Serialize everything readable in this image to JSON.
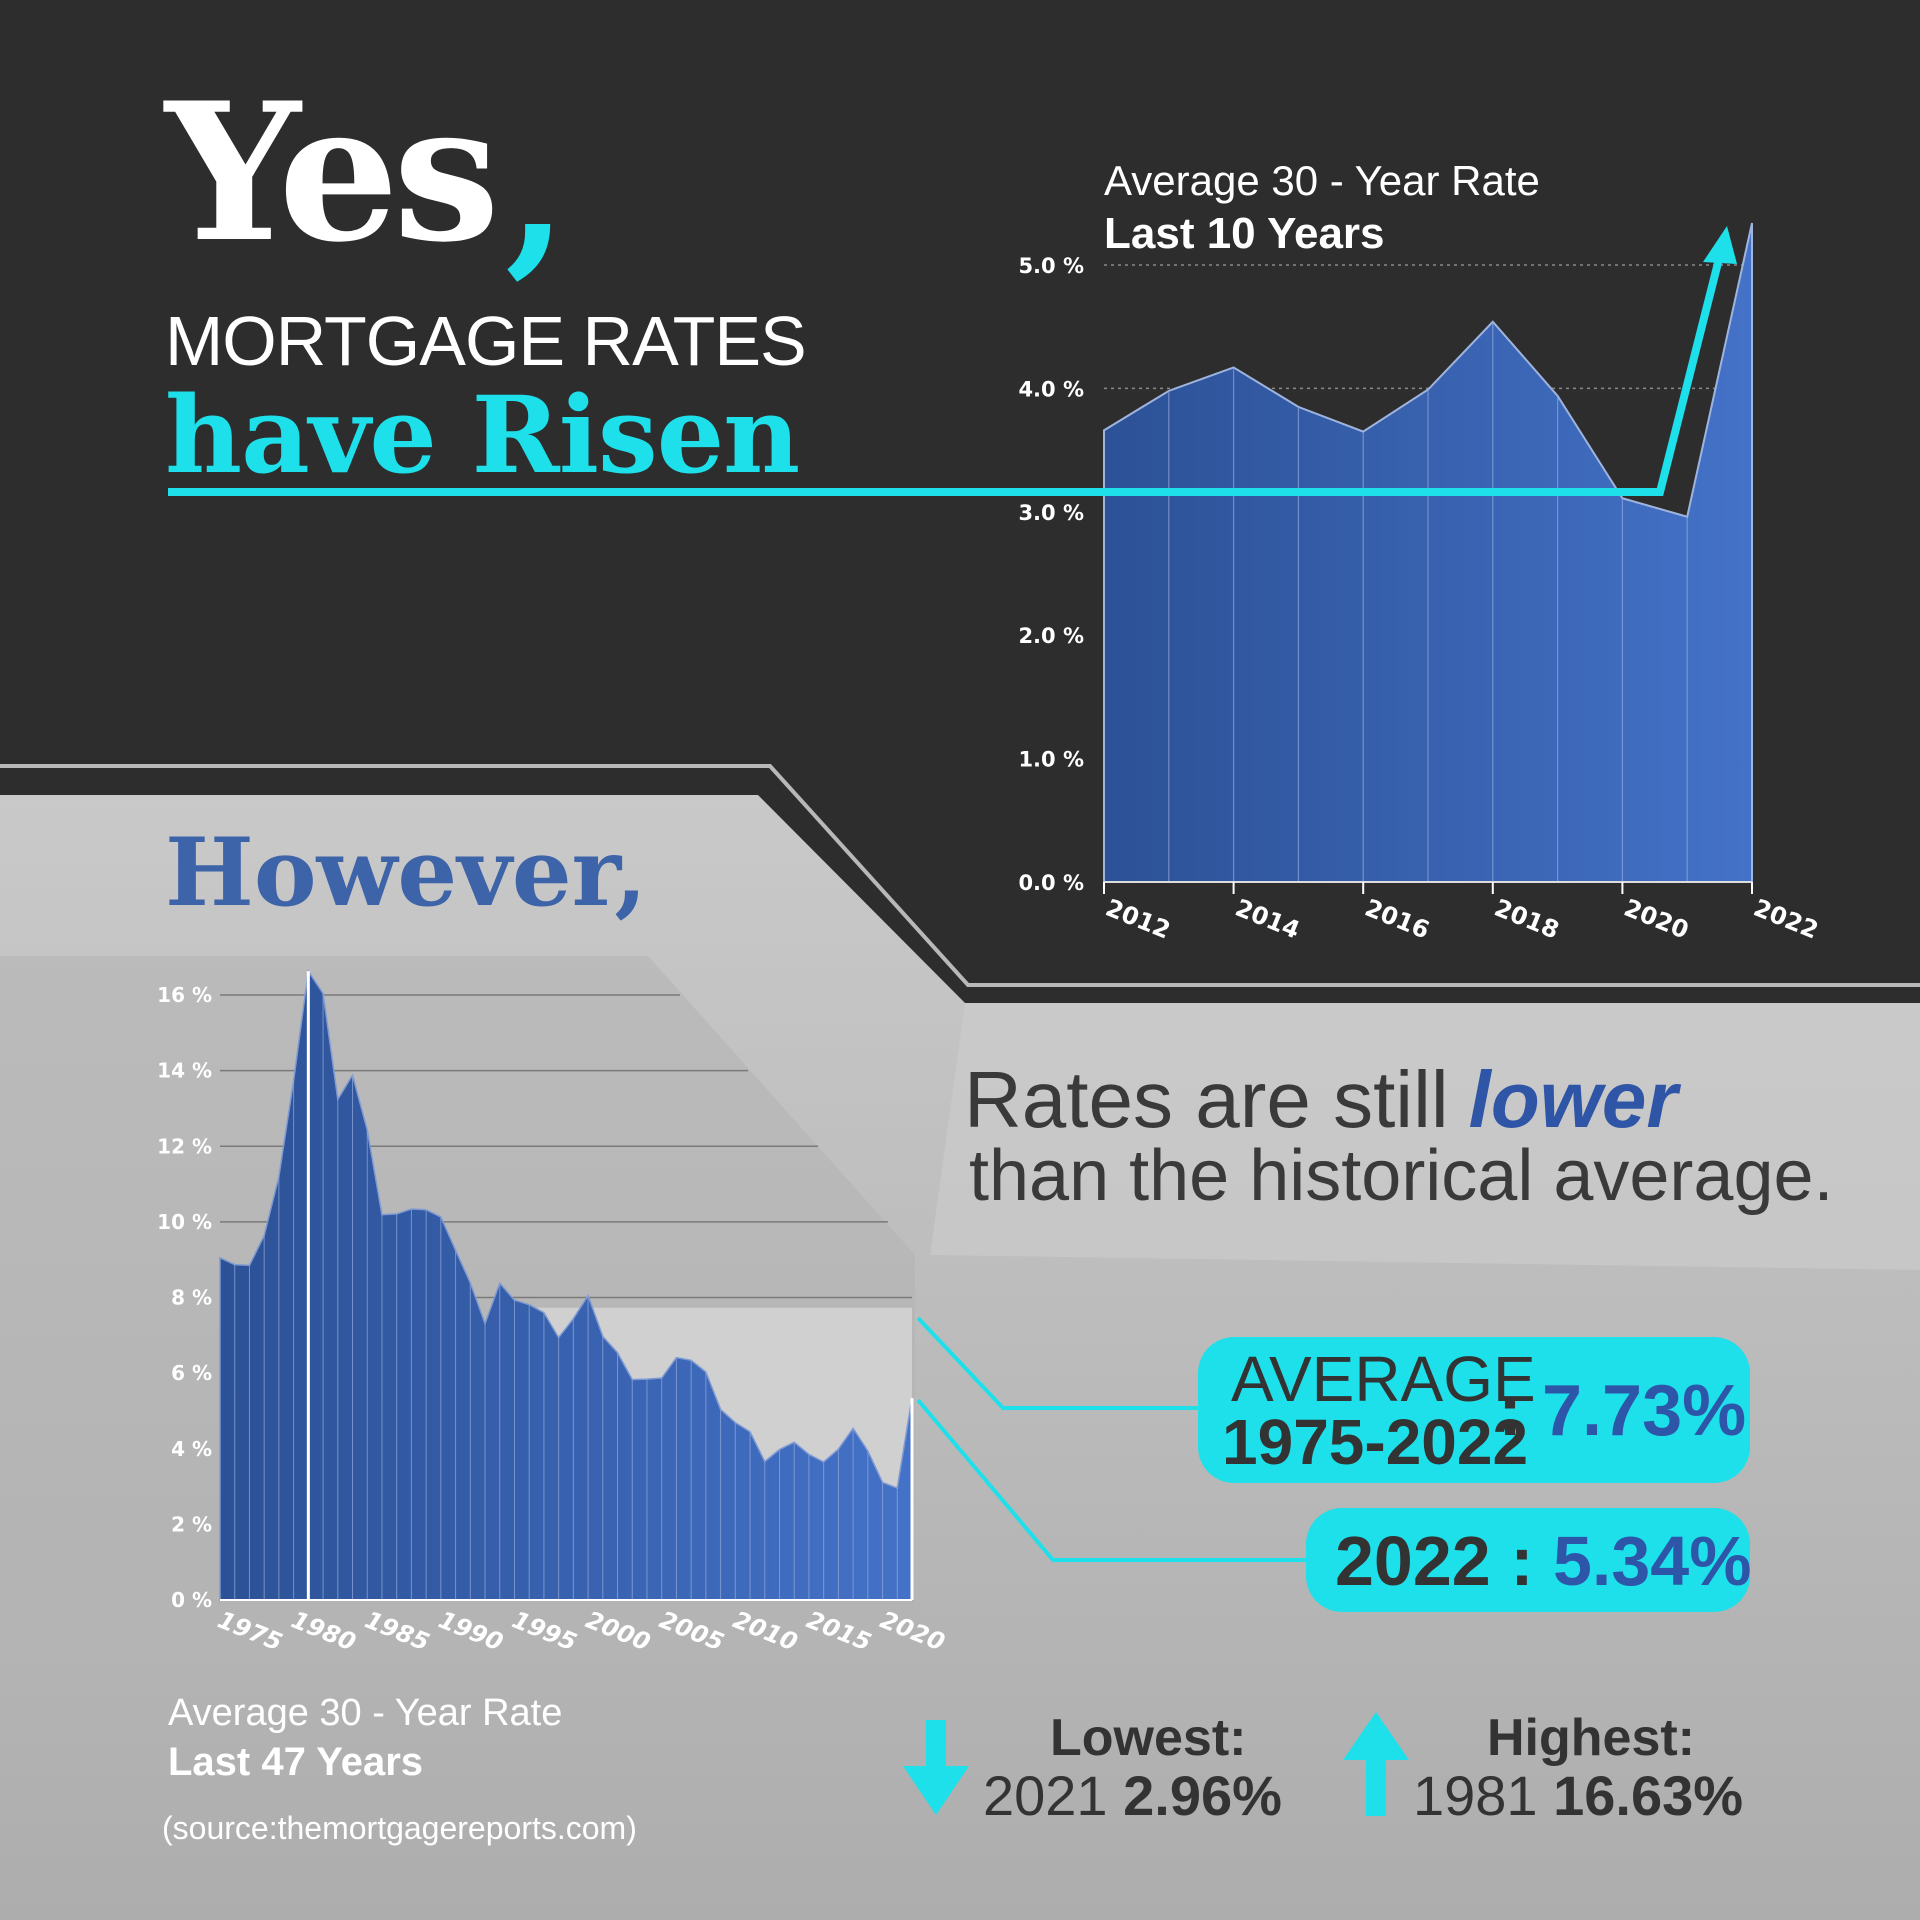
{
  "headline": {
    "yes": "Yes",
    "comma": ",",
    "mortgage_rates": "MORTGAGE RATES",
    "have_risen": "have Risen"
  },
  "however": "However,",
  "comparison": {
    "line1_prefix": "Rates are still",
    "line1_emphasis": "lower",
    "line2": "than the historical average."
  },
  "average_box": {
    "label_line1": "AVERAGE",
    "label_line2": "1975-2022",
    "separator": ":",
    "value": "7.73%"
  },
  "current_box": {
    "year": "2022",
    "separator": ":",
    "value": "5.34%"
  },
  "lowest": {
    "title": "Lowest:",
    "year": "2021",
    "value": "2.96%"
  },
  "highest": {
    "title": "Highest:",
    "year": "1981",
    "value": "16.63%"
  },
  "source": "(source:themortgagereports.com)",
  "colors": {
    "accent_cyan": "#1ee0ea",
    "series_blue": "#3b62b3",
    "dark_background": "#2d2d2e",
    "light_background": "#c2c2c2"
  },
  "icons": {
    "lowest": "arrow-down-icon",
    "highest": "arrow-up-icon",
    "trend": "arrow-up-right-icon"
  },
  "chart_data": [
    {
      "type": "area",
      "title": "Average 30 - Year Rate",
      "subtitle": "Last 10 Years",
      "x": [
        2012,
        2013,
        2014,
        2015,
        2016,
        2017,
        2018,
        2019,
        2020,
        2021,
        2022
      ],
      "x_tick_labels": [
        "2012",
        "2014",
        "2016",
        "2018",
        "2020",
        "2022"
      ],
      "y_tick_labels": [
        "0.0 %",
        "1.0 %",
        "2.0 %",
        "3.0 %",
        "4.0 %",
        "5.0 %"
      ],
      "series": [
        {
          "values": [
            3.66,
            3.98,
            4.17,
            3.85,
            3.65,
            3.99,
            4.54,
            3.94,
            3.11,
            2.96,
            5.34
          ]
        }
      ],
      "ylim": [
        0,
        5.0
      ],
      "grid": "dotted horizontal lines at 4.0 and 5.0"
    },
    {
      "type": "area",
      "title": "Average 30 - Year Rate",
      "subtitle": "Last 47 Years",
      "x": [
        1975,
        1976,
        1977,
        1978,
        1979,
        1980,
        1981,
        1982,
        1983,
        1984,
        1985,
        1986,
        1987,
        1988,
        1989,
        1990,
        1991,
        1992,
        1993,
        1994,
        1995,
        1996,
        1997,
        1998,
        1999,
        2000,
        2001,
        2002,
        2003,
        2004,
        2005,
        2006,
        2007,
        2008,
        2009,
        2010,
        2011,
        2012,
        2013,
        2014,
        2015,
        2016,
        2017,
        2018,
        2019,
        2020,
        2021,
        2022
      ],
      "x_tick_labels": [
        "1975",
        "1980",
        "1985",
        "1990",
        "1995",
        "2000",
        "2005",
        "2010",
        "2015",
        "2020"
      ],
      "y_tick_labels": [
        "0 %",
        "2 %",
        "4 %",
        "6 %",
        "8 %",
        "10 %",
        "12 %",
        "14 %",
        "16 %"
      ],
      "series": [
        {
          "values": [
            9.05,
            8.87,
            8.85,
            9.64,
            11.2,
            13.74,
            16.63,
            16.04,
            13.24,
            13.88,
            12.43,
            10.19,
            10.21,
            10.34,
            10.32,
            10.13,
            9.25,
            8.39,
            7.31,
            8.38,
            7.93,
            7.81,
            7.6,
            6.94,
            7.44,
            8.05,
            6.97,
            6.54,
            5.83,
            5.84,
            5.87,
            6.41,
            6.34,
            6.03,
            5.04,
            4.69,
            4.45,
            3.66,
            3.98,
            4.17,
            3.85,
            3.65,
            3.99,
            4.54,
            3.94,
            3.11,
            2.96,
            5.34
          ]
        }
      ],
      "ylim": [
        0,
        16
      ],
      "grid": "horizontal lines",
      "highlight_band": [
        0,
        7.73
      ],
      "highlight_start_year": 1996
    }
  ]
}
